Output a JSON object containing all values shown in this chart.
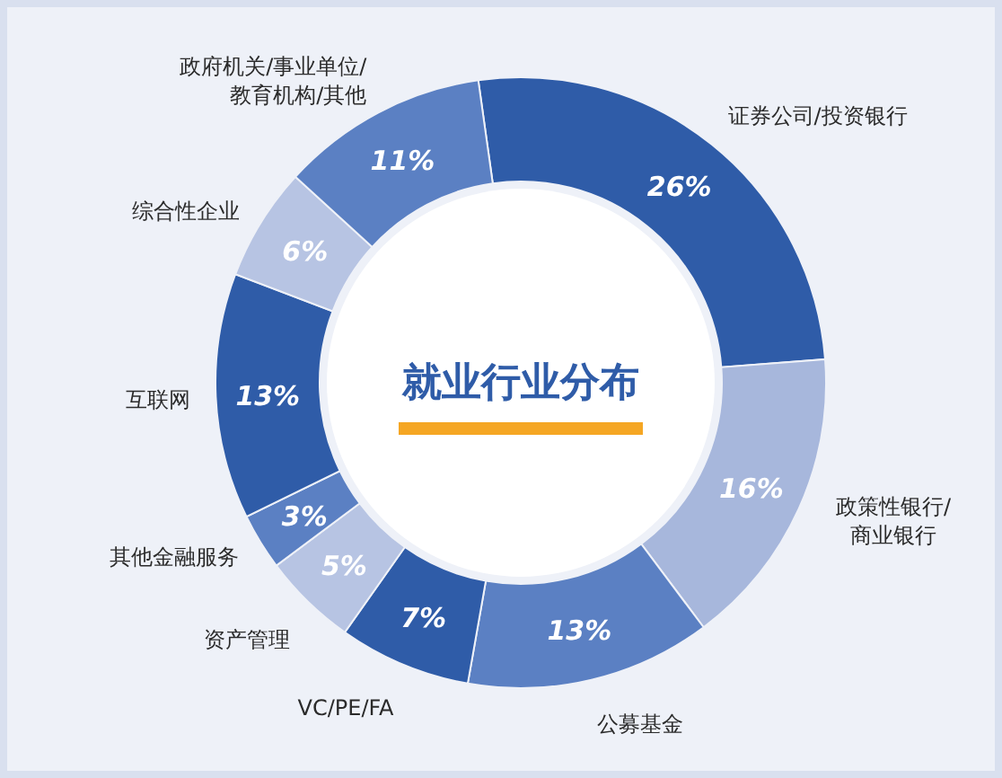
{
  "chart_data": {
    "type": "donut",
    "title": "就业行业分布",
    "categories": [
      "证券公司/投资银行",
      "政策性银行/商业银行",
      "公募基金",
      "VC/PE/FA",
      "资产管理",
      "其他金融服务",
      "互联网",
      "综合性企业",
      "政府机关/事业单位/教育机构/其他"
    ],
    "values": [
      26,
      16,
      13,
      7,
      5,
      3,
      13,
      6,
      11
    ],
    "colors": [
      "#2f5ca8",
      "#a7b7dc",
      "#5b80c3",
      "#2f5ca8",
      "#b7c4e3",
      "#5b80c3",
      "#2f5ca8",
      "#b7c4e3",
      "#5b80c3"
    ],
    "value_labels": [
      "26%",
      "16%",
      "13%",
      "7%",
      "5%",
      "3%",
      "13%",
      "6%",
      "11%"
    ],
    "legend": false
  }
}
